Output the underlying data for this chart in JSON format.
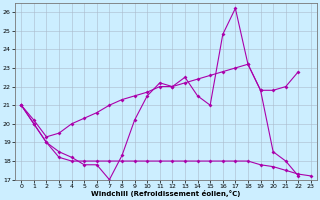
{
  "xlabel": "Windchill (Refroidissement éolien,°C)",
  "bg_color": "#cceeff",
  "line_color": "#aa00aa",
  "grid_color": "#aabbcc",
  "xlim": [
    -0.5,
    23.5
  ],
  "ylim": [
    17,
    26.5
  ],
  "yticks": [
    17,
    18,
    19,
    20,
    21,
    22,
    23,
    24,
    25,
    26
  ],
  "xticks": [
    0,
    1,
    2,
    3,
    4,
    5,
    6,
    7,
    8,
    9,
    10,
    11,
    12,
    13,
    14,
    15,
    16,
    17,
    18,
    19,
    20,
    21,
    22,
    23
  ],
  "line1_y": [
    21.0,
    20.0,
    19.0,
    18.5,
    18.2,
    17.8,
    17.8,
    17.0,
    18.3,
    20.2,
    21.5,
    22.2,
    22.0,
    22.5,
    21.5,
    21.0,
    24.8,
    26.2,
    23.2,
    21.8,
    18.5,
    18.0,
    17.2,
    null
  ],
  "line2_y": [
    21.0,
    20.0,
    19.0,
    18.2,
    18.0,
    18.0,
    18.0,
    18.0,
    18.0,
    18.0,
    18.0,
    18.0,
    18.0,
    18.0,
    18.0,
    18.0,
    18.0,
    18.0,
    18.0,
    17.8,
    17.7,
    17.5,
    17.3,
    17.2
  ],
  "line3_y": [
    21.0,
    20.2,
    19.3,
    19.5,
    20.0,
    20.3,
    20.6,
    21.0,
    21.3,
    21.5,
    21.7,
    22.0,
    22.0,
    22.2,
    22.4,
    22.6,
    22.8,
    23.0,
    23.2,
    21.8,
    21.8,
    22.0,
    22.8,
    null
  ]
}
